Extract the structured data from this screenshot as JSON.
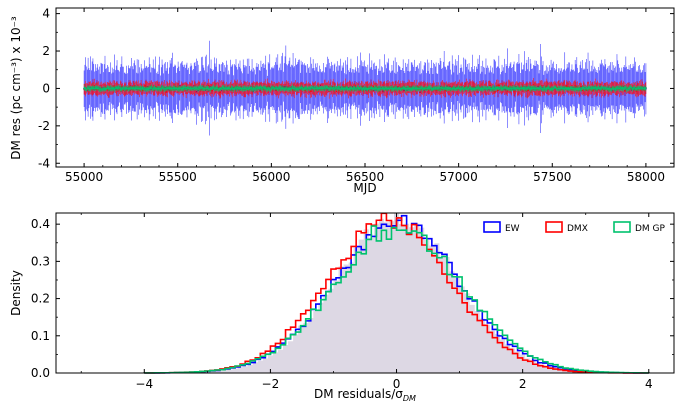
{
  "chart_data": [
    {
      "type": "scatter",
      "panel": "top",
      "xlabel": "MJD",
      "ylabel": "DM res (pc cm⁻³) x 10⁻³",
      "xlim": [
        54850,
        58150
      ],
      "ylim": [
        -4.2,
        4.3
      ],
      "xticks": [
        55000,
        55500,
        56000,
        56500,
        57000,
        57500,
        58000
      ],
      "yticks": [
        -4,
        -2,
        0,
        2,
        4
      ],
      "x_range": [
        55000,
        58000
      ],
      "grid": false,
      "series": [
        {
          "key": "EW",
          "color": "#0000ff",
          "points": "dense",
          "errorbar_sigma": 0.9,
          "scatter_sigma": 0.05
        },
        {
          "key": "DMX",
          "color": "#ff0000",
          "points": "dense",
          "errorbar_sigma": 0.3,
          "scatter_sigma": 0.06
        },
        {
          "key": "DM GP",
          "color": "#00c26e",
          "points": "dense",
          "errorbar_sigma": 0.12,
          "scatter_sigma": 0.03
        }
      ]
    },
    {
      "type": "histogram",
      "panel": "bottom",
      "xlabel": "DM residuals/σ",
      "xlabel_sub": "DM",
      "ylabel": "Density",
      "xlim": [
        -5.4,
        4.4
      ],
      "ylim": [
        0,
        0.43
      ],
      "xticks": [
        -4,
        -2,
        0,
        2,
        4
      ],
      "yticks": [
        0.0,
        0.1,
        0.2,
        0.3,
        0.4
      ],
      "grid": false,
      "legend_position": "top-right",
      "bin_range": [
        -4.0,
        4.0
      ],
      "bin_width": 0.08,
      "background": {
        "color": "#ddd8e4",
        "mean": 0.0,
        "sigma": 0.96,
        "range": [
          -4.6,
          3.7
        ]
      },
      "series": [
        {
          "name": "EW",
          "color": "#0000ff",
          "mean": 0.0,
          "sigma": 1.0
        },
        {
          "name": "DMX",
          "color": "#ff0000",
          "mean": -0.12,
          "sigma": 0.98
        },
        {
          "name": "DM GP",
          "color": "#00c26e",
          "mean": 0.03,
          "sigma": 1.03
        }
      ]
    }
  ]
}
